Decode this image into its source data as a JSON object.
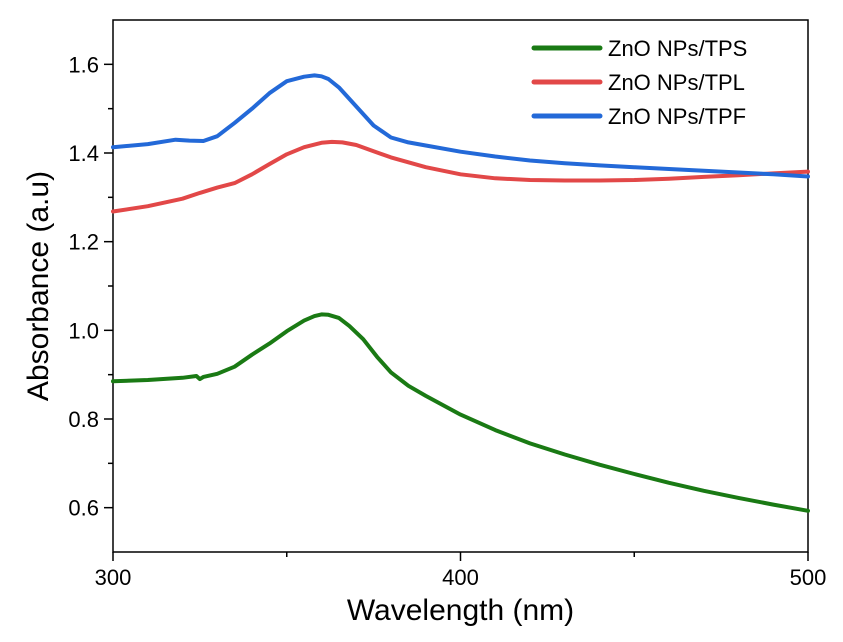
{
  "chart_data": {
    "type": "line",
    "title": "",
    "xlabel": "Wavelength (nm)",
    "ylabel": "Absorbance (a.u)",
    "xlim": [
      300,
      500
    ],
    "ylim": [
      0.5,
      1.7
    ],
    "x_ticks": [
      300,
      400,
      500
    ],
    "x_tick_labels": [
      "300",
      "400",
      "500"
    ],
    "x_minor_ticks": [
      350,
      450
    ],
    "y_ticks": [
      0.6,
      0.8,
      1.0,
      1.2,
      1.4,
      1.6
    ],
    "y_tick_labels": [
      "0.6",
      "0.8",
      "1.0",
      "1.2",
      "1.4",
      "1.6"
    ],
    "y_minor_ticks": [
      0.7,
      0.9,
      1.1,
      1.3,
      1.5
    ],
    "grid": false,
    "legend_position": "top-right",
    "series": [
      {
        "name": "ZnO NPs/TPS",
        "color": "#1a7a14",
        "x": [
          300,
          310,
          320,
          324,
          325,
          326,
          330,
          335,
          340,
          345,
          350,
          355,
          358,
          360,
          362,
          365,
          368,
          372,
          376,
          380,
          385,
          390,
          400,
          410,
          420,
          430,
          440,
          450,
          460,
          470,
          480,
          490,
          500
        ],
        "y": [
          0.885,
          0.888,
          0.893,
          0.897,
          0.89,
          0.895,
          0.902,
          0.918,
          0.945,
          0.97,
          0.998,
          1.022,
          1.032,
          1.036,
          1.035,
          1.028,
          1.01,
          0.98,
          0.94,
          0.905,
          0.875,
          0.852,
          0.81,
          0.775,
          0.745,
          0.72,
          0.697,
          0.676,
          0.656,
          0.638,
          0.622,
          0.607,
          0.593
        ]
      },
      {
        "name": "ZnO NPs/TPL",
        "color": "#e24848",
        "x": [
          300,
          310,
          320,
          325,
          330,
          335,
          340,
          345,
          350,
          355,
          360,
          363,
          366,
          370,
          375,
          380,
          385,
          390,
          400,
          410,
          420,
          430,
          440,
          450,
          460,
          470,
          480,
          490,
          500
        ],
        "y": [
          1.268,
          1.28,
          1.297,
          1.31,
          1.322,
          1.332,
          1.352,
          1.375,
          1.397,
          1.413,
          1.423,
          1.425,
          1.424,
          1.418,
          1.404,
          1.39,
          1.379,
          1.368,
          1.352,
          1.343,
          1.339,
          1.338,
          1.338,
          1.339,
          1.342,
          1.346,
          1.35,
          1.354,
          1.358
        ]
      },
      {
        "name": "ZnO NPs/TPF",
        "color": "#2369d8",
        "x": [
          300,
          310,
          318,
          322,
          326,
          330,
          335,
          340,
          345,
          350,
          355,
          358,
          360,
          362,
          365,
          370,
          375,
          380,
          385,
          390,
          400,
          410,
          420,
          430,
          440,
          450,
          460,
          470,
          480,
          490,
          500
        ],
        "y": [
          1.413,
          1.42,
          1.43,
          1.428,
          1.427,
          1.438,
          1.468,
          1.5,
          1.535,
          1.562,
          1.572,
          1.575,
          1.573,
          1.567,
          1.548,
          1.505,
          1.462,
          1.435,
          1.424,
          1.417,
          1.403,
          1.392,
          1.383,
          1.377,
          1.372,
          1.368,
          1.364,
          1.36,
          1.356,
          1.352,
          1.347
        ]
      }
    ]
  }
}
